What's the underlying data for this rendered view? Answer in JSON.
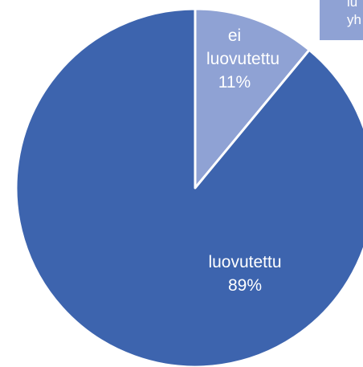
{
  "chart_data": {
    "type": "pie",
    "categories": [
      "ei luovutettu",
      "luovutettu"
    ],
    "values": [
      11,
      89
    ],
    "value_labels": [
      "11%",
      "89%"
    ],
    "colors": [
      "#8fa2d4",
      "#3d64ae"
    ],
    "annotation": [
      "lu",
      "yh"
    ]
  }
}
